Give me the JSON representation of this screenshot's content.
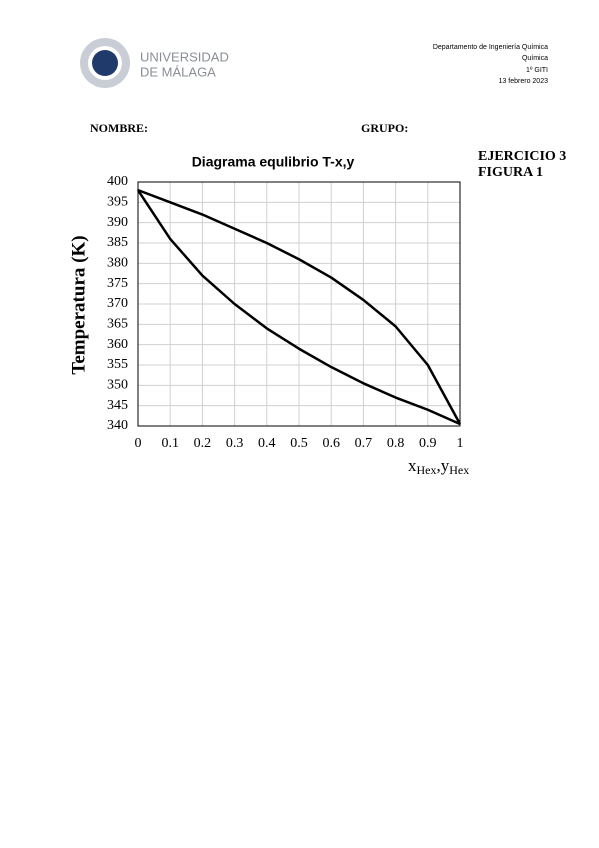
{
  "header": {
    "university": [
      "UNIVERSIDAD",
      "DE MÁLAGA"
    ],
    "info": [
      "Departamento de Ingeniería Química",
      "Química",
      "1º GITI",
      "13 febrero 2023"
    ]
  },
  "form": {
    "name": "NOMBRE:",
    "group": "GRUPO:"
  },
  "exercise": [
    "EJERCICIO 3",
    "FIGURA 1"
  ],
  "chart_data": {
    "type": "line",
    "title": "Diagrama equlibrio T-x,y",
    "y_label": "Temperatura (K)",
    "x_label": [
      "x",
      "Hex",
      ",y",
      "Hex"
    ],
    "x": [
      0,
      0.1,
      0.2,
      0.3,
      0.4,
      0.5,
      0.6,
      0.7,
      0.8,
      0.9,
      1
    ],
    "series": [
      {
        "color": "#000000",
        "values": [
          398,
          386,
          377,
          370,
          364,
          359,
          354.5,
          350.5,
          347,
          344,
          340.5
        ]
      },
      {
        "color": "#000000",
        "values": [
          398,
          395,
          392,
          388.5,
          385,
          381,
          376.5,
          371,
          364.5,
          355,
          340.5
        ]
      }
    ],
    "xlim": [
      0,
      1
    ],
    "xticks": [
      0,
      0.1,
      0.2,
      0.3,
      0.4,
      0.5,
      0.6,
      0.7,
      0.8,
      0.9,
      1
    ],
    "ylim": [
      340,
      400
    ],
    "yticks": [
      340,
      345,
      350,
      355,
      360,
      365,
      370,
      375,
      380,
      385,
      390,
      395,
      400
    ],
    "grid": true
  }
}
